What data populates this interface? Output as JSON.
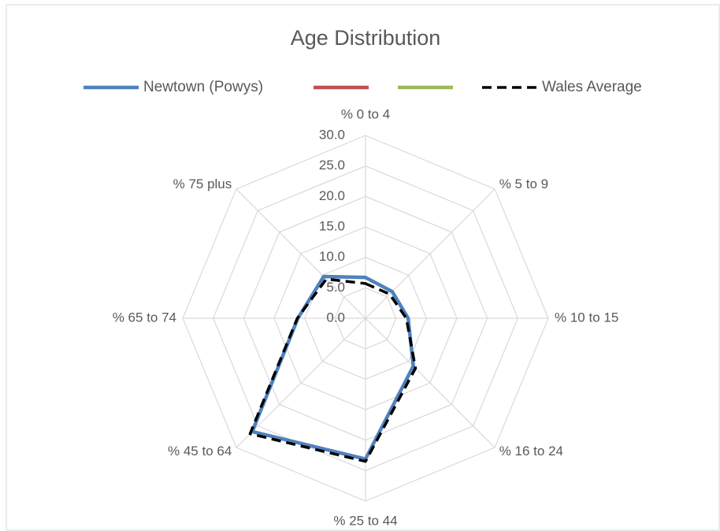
{
  "chart_data": {
    "type": "radar",
    "title": "Age Distribution",
    "categories": [
      "% 0 to 4",
      "% 5 to 9",
      "% 10 to 15",
      "% 16 to 24",
      "% 25 to 44",
      "% 45 to 64",
      "% 65 to 74",
      "% 75 plus"
    ],
    "series": [
      {
        "name": "Newtown (Powys)",
        "color": "#4f81bd",
        "dashed": false,
        "values": [
          6.7,
          6.2,
          7.0,
          11.1,
          23.1,
          26.3,
          11.1,
          9.7
        ]
      },
      {
        "name": null,
        "color": "#c0504d",
        "dashed": false,
        "values": [
          null,
          null,
          null,
          null,
          null,
          null,
          null,
          null
        ]
      },
      {
        "name": null,
        "color": "#9bbb59",
        "dashed": false,
        "values": [
          null,
          null,
          null,
          null,
          null,
          null,
          null,
          null
        ]
      },
      {
        "name": "Wales Average",
        "color": "#000000",
        "dashed": true,
        "values": [
          5.7,
          5.6,
          6.7,
          11.6,
          23.5,
          26.8,
          11.2,
          9.1
        ]
      }
    ],
    "ylim": [
      0,
      30
    ],
    "yticks": [
      {
        "value": 0,
        "label": "0.0"
      },
      {
        "value": 5,
        "label": "5.0"
      },
      {
        "value": 10,
        "label": "10.0"
      },
      {
        "value": 15,
        "label": "15.0"
      },
      {
        "value": 20,
        "label": "20.0"
      },
      {
        "value": 25,
        "label": "25.0"
      },
      {
        "value": 30,
        "label": "30.0"
      }
    ],
    "grid": true,
    "legend": "top"
  }
}
